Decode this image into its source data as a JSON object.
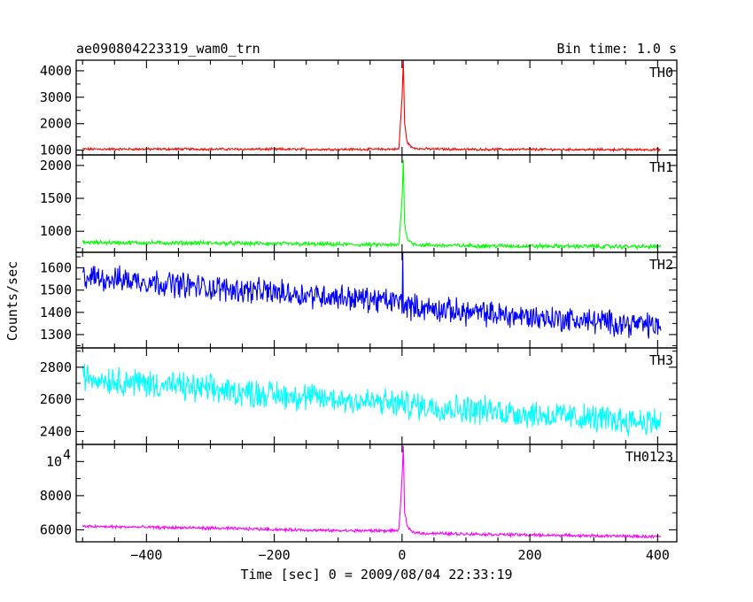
{
  "chart_data": {
    "type": "line",
    "title_left": "ae090804223319_wam0_trn",
    "title_right": "Bin time: 1.0 s",
    "xlabel": "Time [sec] 0 = 2009/08/04 22:33:19",
    "ylabel": "Counts/sec",
    "xlim": [
      -510,
      430
    ],
    "x_ticks": [
      -400,
      -200,
      0,
      200,
      400
    ],
    "x_tick_labels": [
      "−400",
      "−200",
      "0",
      "200",
      "400"
    ],
    "grid": false,
    "panels": [
      {
        "name": "TH0",
        "color": "#ff0000",
        "ylim": [
          820,
          4400
        ],
        "y_ticks": [
          1000,
          2000,
          3000,
          4000
        ],
        "y_tick_labels": [
          "1000",
          "2000",
          "3000",
          "4000"
        ],
        "x": [
          -500,
          -300,
          -100,
          -5,
          0,
          2,
          4,
          8,
          15,
          30,
          100,
          200,
          300,
          400
        ],
        "values": [
          1040,
          1040,
          1030,
          1040,
          3000,
          4400,
          2000,
          1300,
          1100,
          1050,
          1030,
          1030,
          1020,
          1020
        ],
        "noise": 35
      },
      {
        "name": "TH1",
        "color": "#00ff00",
        "ylim": [
          680,
          2160
        ],
        "y_ticks": [
          1000,
          1500,
          2000
        ],
        "y_tick_labels": [
          "1000",
          "1500",
          "2000"
        ],
        "x": [
          -500,
          -300,
          -100,
          -5,
          0,
          2,
          4,
          8,
          15,
          30,
          100,
          200,
          300,
          400
        ],
        "values": [
          830,
          820,
          800,
          790,
          1500,
          2100,
          1100,
          900,
          820,
          790,
          780,
          775,
          770,
          765
        ],
        "noise": 25
      },
      {
        "name": "TH2",
        "color": "#0000ff",
        "ylim": [
          1240,
          1670
        ],
        "y_ticks": [
          1300,
          1400,
          1500,
          1600
        ],
        "y_tick_labels": [
          "1300",
          "1400",
          "1500",
          "1600"
        ],
        "x": [
          -500,
          -400,
          -300,
          -200,
          -100,
          0,
          1,
          2,
          100,
          200,
          300,
          400
        ],
        "values": [
          1560,
          1540,
          1510,
          1490,
          1470,
          1445,
          1680,
          1430,
          1400,
          1380,
          1360,
          1340
        ],
        "noise": 45
      },
      {
        "name": "TH3",
        "color": "#00ffff",
        "ylim": [
          2320,
          2920
        ],
        "y_ticks": [
          2400,
          2600,
          2800
        ],
        "y_tick_labels": [
          "2400",
          "2600",
          "2800"
        ],
        "x": [
          -500,
          -400,
          -300,
          -200,
          -100,
          0,
          100,
          200,
          300,
          400
        ],
        "values": [
          2740,
          2700,
          2660,
          2630,
          2600,
          2570,
          2540,
          2510,
          2480,
          2460
        ],
        "noise": 70
      },
      {
        "name": "TH0123",
        "color": "#ff00ff",
        "ylim": [
          5300,
          11000
        ],
        "y_ticks": [
          6000,
          8000
        ],
        "y_tick_labels": [
          "6000",
          "8000"
        ],
        "y_tick_exp_label": {
          "value": 10000,
          "base": "10",
          "exp": "4"
        },
        "x": [
          -500,
          -300,
          -100,
          -5,
          0,
          2,
          4,
          8,
          15,
          30,
          100,
          200,
          300,
          400
        ],
        "values": [
          6200,
          6100,
          5950,
          5950,
          9000,
          11000,
          7000,
          6200,
          5900,
          5800,
          5760,
          5700,
          5650,
          5600
        ],
        "noise": 70
      }
    ]
  }
}
